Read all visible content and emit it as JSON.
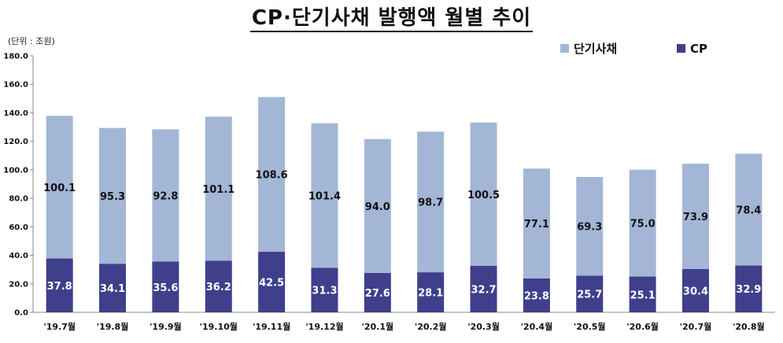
{
  "title": "CP·단기사채 발행액 월별 추이",
  "unit_label": "(단위 : 조원)",
  "chart_data": {
    "type": "bar",
    "stacked": true,
    "categories": [
      "'19.7월",
      "'19.8월",
      "'19.9월",
      "'19.10월",
      "'19.11월",
      "'19.12월",
      "'20.1월",
      "'20.2월",
      "'20.3월",
      "'20.4월",
      "'20.5월",
      "'20.6월",
      "'20.7월",
      "'20.8월"
    ],
    "series": [
      {
        "name": "CP",
        "color": "#3f3f8c",
        "label_color": "#ffffff",
        "values": [
          37.8,
          34.1,
          35.6,
          36.2,
          42.5,
          31.3,
          27.6,
          28.1,
          32.7,
          23.8,
          25.7,
          25.1,
          30.4,
          32.9
        ]
      },
      {
        "name": "단기사채",
        "color": "#a3b6d6",
        "label_color": "#111111",
        "values": [
          100.1,
          95.3,
          92.8,
          101.1,
          108.6,
          101.4,
          94.0,
          98.7,
          100.5,
          77.1,
          69.3,
          75.0,
          73.9,
          78.4
        ]
      }
    ],
    "ylim": [
      0,
      180
    ],
    "yticks": [
      "0.0",
      "20.0",
      "40.0",
      "60.0",
      "80.0",
      "100.0",
      "120.0",
      "140.0",
      "160.0",
      "180.0"
    ],
    "grid": false,
    "legend_position": "top-right",
    "legend_order": [
      "단기사채",
      "CP"
    ]
  }
}
